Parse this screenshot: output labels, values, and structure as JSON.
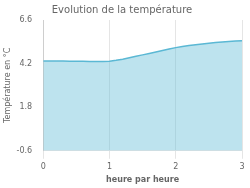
{
  "chart_data": {
    "type": "area",
    "title": "Evolution de la température",
    "xlabel": "heure par heure",
    "ylabel": "Température en °C",
    "x": [
      0,
      0.1,
      0.2,
      0.3,
      0.4,
      0.5,
      0.6,
      0.7,
      0.8,
      0.9,
      1.0,
      1.1,
      1.2,
      1.3,
      1.4,
      1.5,
      1.6,
      1.7,
      1.8,
      1.9,
      2.0,
      2.1,
      2.2,
      2.3,
      2.4,
      2.5,
      2.6,
      2.7,
      2.8,
      2.9,
      3.0
    ],
    "values": [
      4.35,
      4.35,
      4.34,
      4.34,
      4.33,
      4.33,
      4.33,
      4.32,
      4.32,
      4.32,
      4.33,
      4.38,
      4.44,
      4.52,
      4.6,
      4.68,
      4.76,
      4.84,
      4.92,
      5.0,
      5.08,
      5.14,
      5.19,
      5.24,
      5.28,
      5.32,
      5.36,
      5.39,
      5.42,
      5.44,
      5.46
    ],
    "color": "#5bb8d4",
    "xlim": [
      0,
      3
    ],
    "xticks": [
      0,
      1,
      2,
      3
    ],
    "ylim": [
      -0.6,
      6.6
    ],
    "yticks": [
      -0.6,
      1.8,
      4.2,
      6.6
    ],
    "grid": "x"
  }
}
